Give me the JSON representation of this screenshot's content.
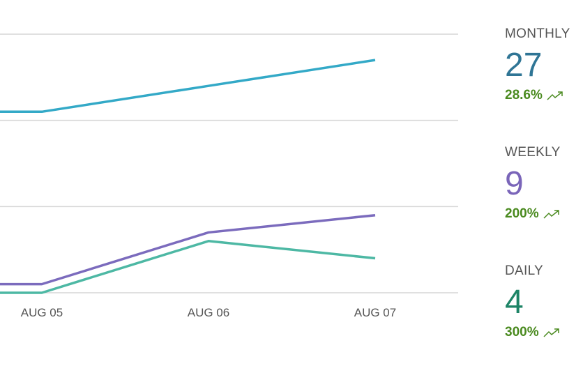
{
  "chart_data": {
    "type": "line",
    "categories": [
      null,
      "AUG 05",
      "AUG 06",
      "AUG 07"
    ],
    "series": [
      {
        "name": "Monthly",
        "color": "#33a9c7",
        "values": [
          21,
          21,
          24,
          27
        ]
      },
      {
        "name": "Weekly",
        "color": "#7b6bbd",
        "values": [
          1,
          1,
          7,
          9
        ]
      },
      {
        "name": "Daily",
        "color": "#4db8a4",
        "values": [
          0,
          0,
          6,
          4
        ]
      }
    ],
    "ylim": [
      0,
      30
    ],
    "yticks": [
      0,
      10,
      20,
      30
    ],
    "grid": true
  },
  "stats": [
    {
      "label": "MONTHLY",
      "value": 27,
      "change": "28.6%"
    },
    {
      "label": "WEEKLY",
      "value": 9,
      "change": "200%"
    },
    {
      "label": "DAILY",
      "value": 4,
      "change": "300%"
    }
  ]
}
